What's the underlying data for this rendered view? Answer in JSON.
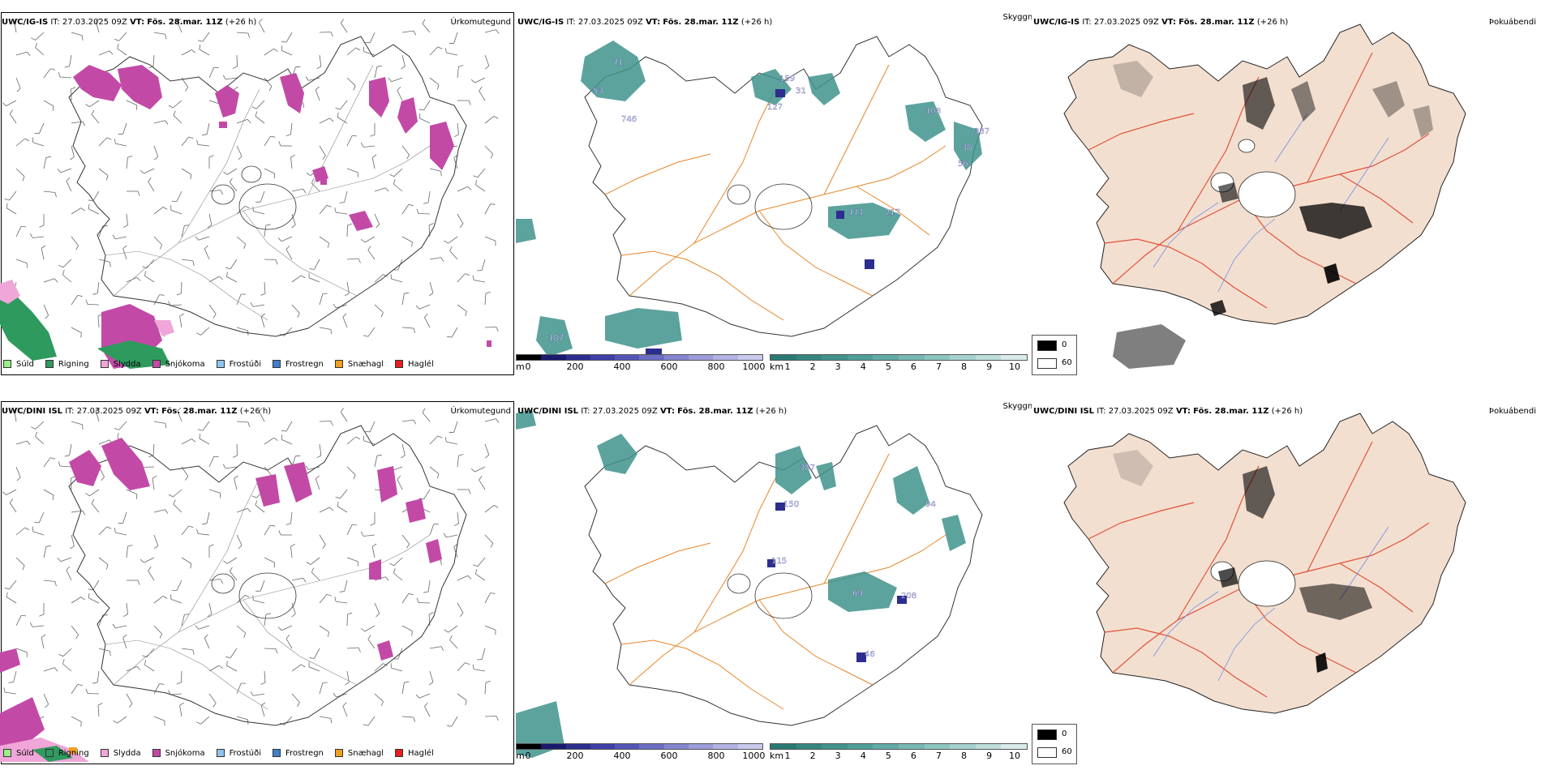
{
  "rows": [
    {
      "model": "UWC/IG-IS",
      "it_label": "IT:",
      "it_value": "27.03.2025 09Z",
      "vt_label": "VT:",
      "vt_value": "Fös. 28.mar. 11Z",
      "lead": "(+26 h)"
    },
    {
      "model": "UWC/DINI ISL",
      "it_label": "IT:",
      "it_value": "27.03.2025 09Z",
      "vt_label": "VT:",
      "vt_value": "Fös. 28.mar. 11Z",
      "lead": "(+26 h)"
    }
  ],
  "panel_titles": {
    "precip_type": "Úrkomutegund",
    "visibility": "Skyggni",
    "fog": "Þokuábendi"
  },
  "precip_legend": [
    {
      "label": "Súld",
      "color": "#99ee88"
    },
    {
      "label": "Rigning",
      "color": "#2e9a5e"
    },
    {
      "label": "Slydda",
      "color": "#f0a6d8"
    },
    {
      "label": "Snjókoma",
      "color": "#c24aa6"
    },
    {
      "label": "Frostúði",
      "color": "#8fc4ef"
    },
    {
      "label": "Frostregn",
      "color": "#3f7fc9"
    },
    {
      "label": "Snæhagl",
      "color": "#f0a020"
    },
    {
      "label": "Haglél",
      "color": "#e81c1c"
    }
  ],
  "ceiling_scale": {
    "unit": "m",
    "ticks": [
      "0",
      "200",
      "400",
      "600",
      "800",
      "1000"
    ],
    "colors": [
      "#000000",
      "#1a1a6e",
      "#2d2d8f",
      "#3f3fa8",
      "#5555b8",
      "#6d6dc4",
      "#8585cf",
      "#9c9cd9",
      "#b3b3e3",
      "#cacaed"
    ]
  },
  "visibility_scale": {
    "unit": "km",
    "ticks": [
      "1",
      "2",
      "3",
      "4",
      "5",
      "6",
      "7",
      "8",
      "9",
      "10"
    ],
    "colors": [
      "#2a7a74",
      "#348781",
      "#40938d",
      "#4f9f99",
      "#62aba6",
      "#77b8b3",
      "#8dc5c0",
      "#a5d2ce",
      "#bedfdc",
      "#d9ecea"
    ]
  },
  "fog_scale": {
    "high": "0",
    "low": "60",
    "high_color": "#000000",
    "low_color": "#ffffff"
  },
  "visibility_labels_top": [
    "71",
    "53",
    "746",
    "159",
    "31",
    "127",
    "108",
    "387",
    "38",
    "56",
    "171",
    "217",
    "187"
  ],
  "visibility_labels_bottom": [
    "387",
    "150",
    "94",
    "115",
    "69",
    "208",
    "46"
  ]
}
